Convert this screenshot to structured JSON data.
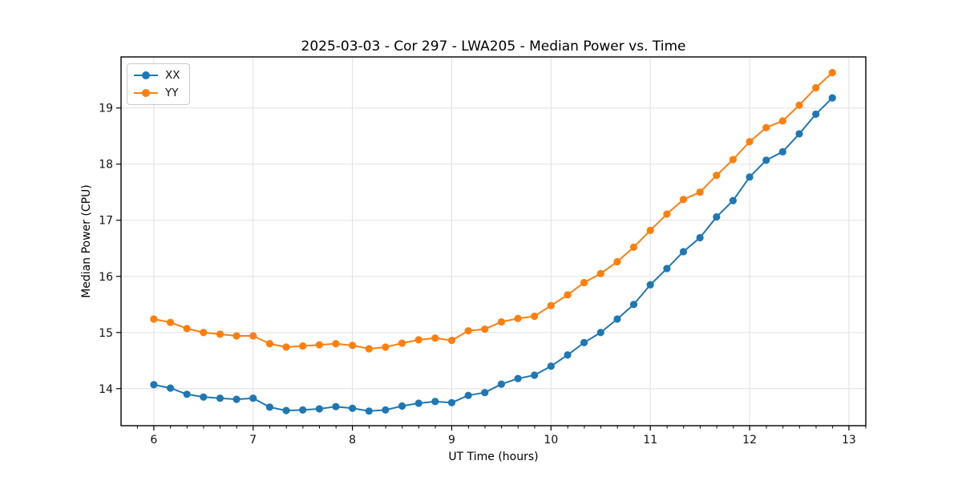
{
  "figure": {
    "title": "2025-03-03 - Cor 297 - LWA205 - Median Power vs. Time",
    "xlabel": "UT Time (hours)",
    "ylabel": "Median Power (CPU)"
  },
  "colors": {
    "grid": "#e0e0e0",
    "spine": "#000000",
    "background": "#ffffff",
    "series_xx": "#1f77b4",
    "series_yy": "#ff7f0e"
  },
  "chart_data": {
    "type": "line",
    "title": "2025-03-03 - Cor 297 - LWA205 - Median Power vs. Time",
    "xlabel": "UT Time (hours)",
    "ylabel": "Median Power (CPU)",
    "xlim": [
      5.67,
      13.17
    ],
    "ylim": [
      13.34,
      19.91
    ],
    "x_ticks": [
      6,
      7,
      8,
      9,
      10,
      11,
      12,
      13
    ],
    "y_ticks": [
      14,
      15,
      16,
      17,
      18,
      19
    ],
    "x_minor_tick_step": 0.1667,
    "grid": "major",
    "legend_position": "upper left",
    "marker": "circle",
    "x": [
      6.0,
      6.167,
      6.333,
      6.5,
      6.667,
      6.833,
      7.0,
      7.167,
      7.333,
      7.5,
      7.667,
      7.833,
      8.0,
      8.167,
      8.333,
      8.5,
      8.667,
      8.833,
      9.0,
      9.167,
      9.333,
      9.5,
      9.667,
      9.833,
      10.0,
      10.167,
      10.333,
      10.5,
      10.667,
      10.833,
      11.0,
      11.167,
      11.333,
      11.5,
      11.667,
      11.833,
      12.0,
      12.167,
      12.333,
      12.5,
      12.667,
      12.833
    ],
    "series": [
      {
        "name": "XX",
        "color": "#1f77b4",
        "values": [
          14.07,
          14.01,
          13.9,
          13.85,
          13.83,
          13.81,
          13.83,
          13.67,
          13.61,
          13.62,
          13.64,
          13.68,
          13.65,
          13.6,
          13.62,
          13.69,
          13.74,
          13.77,
          13.75,
          13.88,
          13.93,
          14.08,
          14.18,
          14.24,
          14.4,
          14.6,
          14.82,
          15.0,
          15.24,
          15.5,
          15.85,
          16.14,
          16.44,
          16.69,
          17.06,
          17.35,
          17.77,
          18.07,
          18.22,
          18.54,
          18.89,
          19.18
        ]
      },
      {
        "name": "YY",
        "color": "#ff7f0e",
        "values": [
          15.24,
          15.18,
          15.07,
          15.0,
          14.97,
          14.94,
          14.94,
          14.8,
          14.74,
          14.76,
          14.78,
          14.8,
          14.77,
          14.71,
          14.74,
          14.81,
          14.87,
          14.9,
          14.86,
          15.03,
          15.06,
          15.19,
          15.25,
          15.29,
          15.48,
          15.67,
          15.89,
          16.05,
          16.26,
          16.52,
          16.82,
          17.11,
          17.37,
          17.5,
          17.8,
          18.08,
          18.4,
          18.65,
          18.77,
          19.05,
          19.36,
          19.63
        ]
      }
    ]
  }
}
